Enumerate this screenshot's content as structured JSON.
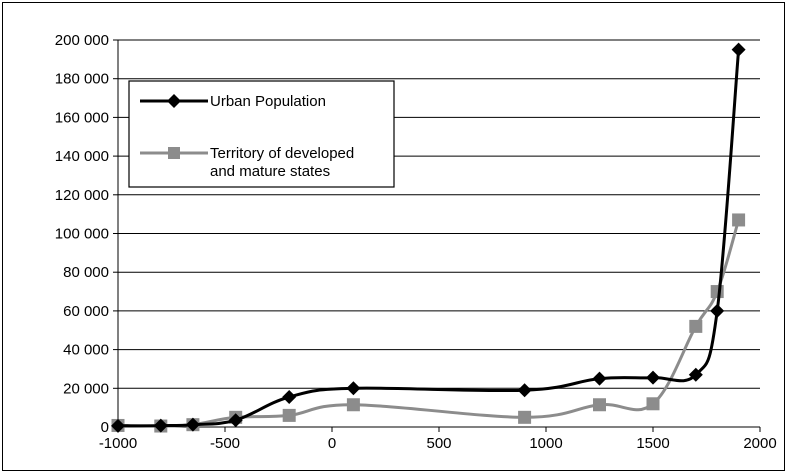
{
  "chart_data": {
    "type": "line",
    "title": "",
    "xlabel": "",
    "ylabel": "",
    "xlim": [
      -1000,
      2000
    ],
    "ylim": [
      0,
      200000
    ],
    "x_ticks": [
      -1000,
      -500,
      0,
      500,
      1000,
      1500,
      2000
    ],
    "x_tick_labels": [
      "-1000",
      "-500",
      "0",
      "500",
      "1000",
      "1500",
      "2000"
    ],
    "y_ticks": [
      0,
      20000,
      40000,
      60000,
      80000,
      100000,
      120000,
      140000,
      160000,
      180000,
      200000
    ],
    "y_tick_labels": [
      "0",
      "20 000",
      "40 000",
      "60 000",
      "80 000",
      "100 000",
      "120 000",
      "140 000",
      "160 000",
      "180 000",
      "200 000"
    ],
    "grid": true,
    "legend_position": "top-left",
    "series": [
      {
        "name": "Urban Population",
        "color": "#000000",
        "marker": "diamond",
        "x": [
          -1000,
          -800,
          -650,
          -450,
          -200,
          100,
          900,
          1250,
          1500,
          1700,
          1800,
          1900
        ],
        "y": [
          600,
          700,
          1200,
          3500,
          15500,
          20000,
          19000,
          25000,
          25500,
          27000,
          60000,
          195000
        ]
      },
      {
        "name": "Territory of developed and mature states",
        "legend_lines": [
          "Territory of developed",
          "and mature states"
        ],
        "color": "#8c8c8c",
        "marker": "square",
        "x": [
          -1000,
          -800,
          -650,
          -450,
          -200,
          100,
          900,
          1250,
          1500,
          1700,
          1800,
          1900
        ],
        "y": [
          800,
          500,
          1200,
          5000,
          6000,
          11500,
          5000,
          11500,
          12000,
          52000,
          70000,
          107000
        ]
      }
    ]
  }
}
